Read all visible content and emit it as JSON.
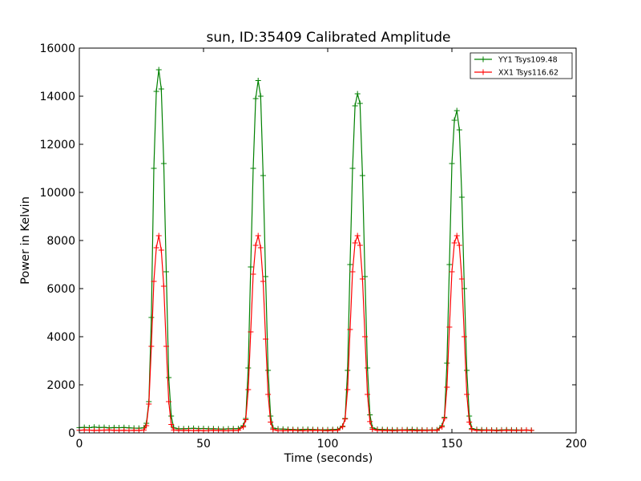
{
  "chart_data": {
    "type": "line",
    "title": "sun, ID:35409 Calibrated Amplitude",
    "xlabel": "Time (seconds)",
    "ylabel": "Power in Kelvin",
    "xlim": [
      0,
      200
    ],
    "ylim": [
      0,
      16000
    ],
    "xticks": [
      0,
      50,
      100,
      150,
      200
    ],
    "yticks": [
      0,
      2000,
      4000,
      6000,
      8000,
      10000,
      12000,
      14000,
      16000
    ],
    "xtick_labels": [
      "0",
      "50",
      "100",
      "150",
      "200"
    ],
    "ytick_labels": [
      "0",
      "2000",
      "4000",
      "6000",
      "8000",
      "10000",
      "12000",
      "14000",
      "16000"
    ],
    "grid": false,
    "legend_position": "top-right",
    "marker": "plus",
    "series": [
      {
        "name": "YY1 Tsys109.48",
        "color": "#008000",
        "x": [
          0,
          2,
          4,
          6,
          8,
          10,
          12,
          14,
          16,
          18,
          20,
          22,
          24,
          26,
          27,
          28,
          29,
          30,
          31,
          32,
          33,
          34,
          35,
          36,
          37,
          38,
          40,
          42,
          44,
          46,
          48,
          50,
          52,
          54,
          56,
          58,
          60,
          62,
          64,
          66,
          67,
          68,
          69,
          70,
          71,
          72,
          73,
          74,
          75,
          76,
          77,
          78,
          80,
          82,
          84,
          86,
          88,
          90,
          92,
          94,
          96,
          98,
          100,
          102,
          104,
          106,
          107,
          108,
          109,
          110,
          111,
          112,
          113,
          114,
          115,
          116,
          117,
          118,
          120,
          122,
          124,
          126,
          128,
          130,
          132,
          134,
          136,
          138,
          140,
          142,
          144,
          146,
          147,
          148,
          149,
          150,
          151,
          152,
          153,
          154,
          155,
          156,
          157,
          158,
          160,
          162,
          164,
          166,
          168,
          170,
          172,
          174,
          176,
          178,
          180,
          182
        ],
        "y": [
          220,
          230,
          215,
          240,
          225,
          230,
          210,
          220,
          215,
          225,
          210,
          200,
          195,
          210,
          400,
          1300,
          4800,
          11000,
          14200,
          15100,
          14300,
          11200,
          6700,
          2300,
          700,
          210,
          170,
          175,
          185,
          190,
          180,
          185,
          170,
          175,
          165,
          160,
          170,
          175,
          180,
          300,
          600,
          2700,
          6900,
          11000,
          13900,
          14650,
          14000,
          10700,
          6500,
          2600,
          700,
          200,
          165,
          160,
          150,
          140,
          135,
          145,
          150,
          140,
          135,
          130,
          135,
          140,
          145,
          280,
          600,
          2600,
          7000,
          11000,
          13600,
          14100,
          13700,
          10700,
          6500,
          2700,
          750,
          210,
          150,
          140,
          135,
          130,
          125,
          130,
          135,
          140,
          130,
          125,
          120,
          125,
          130,
          300,
          650,
          2900,
          7000,
          11200,
          13000,
          13400,
          12600,
          9800,
          6000,
          2600,
          700,
          180,
          140,
          130,
          125,
          120,
          115,
          125,
          130,
          125,
          120,
          115,
          120,
          110
        ]
      },
      {
        "name": "XX1 Tsys116.62",
        "color": "#ff0000",
        "x": [
          0,
          2,
          4,
          6,
          8,
          10,
          12,
          14,
          16,
          18,
          20,
          22,
          24,
          26,
          27,
          28,
          29,
          30,
          31,
          32,
          33,
          34,
          35,
          36,
          37,
          38,
          40,
          42,
          44,
          46,
          48,
          50,
          52,
          54,
          56,
          58,
          60,
          62,
          64,
          66,
          67,
          68,
          69,
          70,
          71,
          72,
          73,
          74,
          75,
          76,
          77,
          78,
          80,
          82,
          84,
          86,
          88,
          90,
          92,
          94,
          96,
          98,
          100,
          102,
          104,
          106,
          107,
          108,
          109,
          110,
          111,
          112,
          113,
          114,
          115,
          116,
          117,
          118,
          120,
          122,
          124,
          126,
          128,
          130,
          132,
          134,
          136,
          138,
          140,
          142,
          144,
          146,
          147,
          148,
          149,
          150,
          151,
          152,
          153,
          154,
          155,
          156,
          157,
          158,
          160,
          162,
          164,
          166,
          168,
          170,
          172,
          174,
          176,
          178,
          180,
          182
        ],
        "y": [
          110,
          120,
          115,
          105,
          110,
          115,
          120,
          110,
          105,
          110,
          100,
          110,
          105,
          120,
          300,
          1200,
          3600,
          6300,
          7700,
          8200,
          7600,
          6100,
          3600,
          1300,
          350,
          120,
          110,
          105,
          110,
          100,
          105,
          95,
          100,
          110,
          105,
          95,
          100,
          105,
          110,
          250,
          550,
          1800,
          4200,
          6600,
          7800,
          8200,
          7700,
          6300,
          3900,
          1600,
          450,
          140,
          100,
          95,
          105,
          110,
          100,
          95,
          100,
          105,
          110,
          100,
          95,
          105,
          110,
          260,
          580,
          1800,
          4300,
          6700,
          7900,
          8200,
          7800,
          6400,
          4000,
          1600,
          470,
          150,
          110,
          100,
          105,
          95,
          100,
          110,
          105,
          100,
          95,
          105,
          100,
          110,
          105,
          250,
          600,
          1900,
          4400,
          6700,
          7900,
          8200,
          7800,
          6400,
          4000,
          1600,
          450,
          140,
          105,
          100,
          110,
          105,
          95,
          100,
          110,
          105,
          100,
          110,
          115,
          105
        ]
      }
    ]
  }
}
